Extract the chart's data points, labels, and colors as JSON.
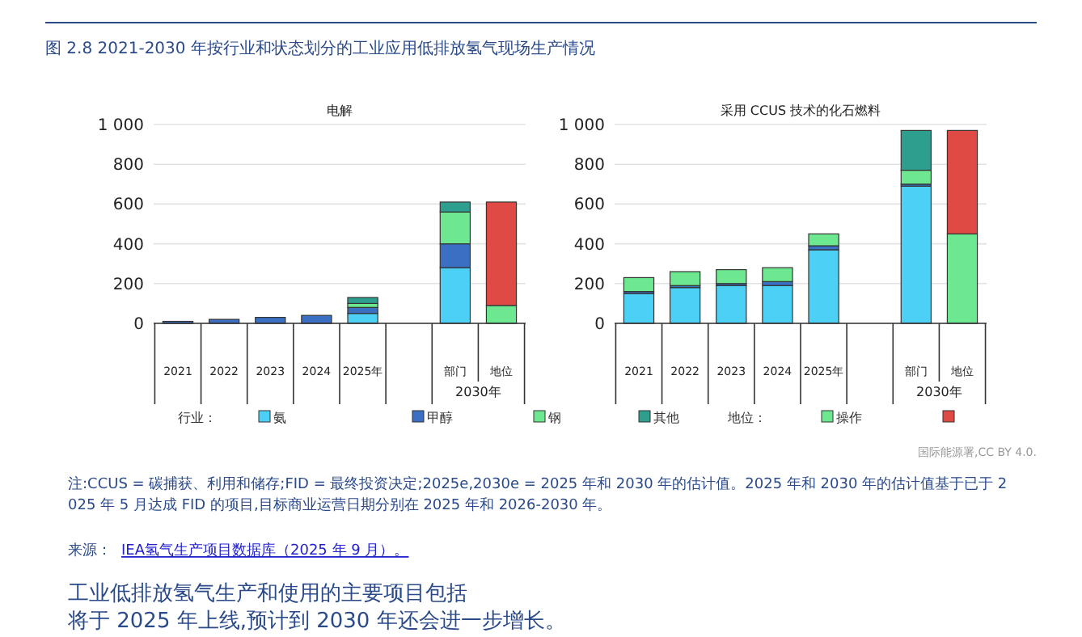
{
  "chart_data": [
    {
      "type": "bar",
      "stacked": true,
      "title": "图 2.8 2021-2030 年按行业和状态划分的工业应用低排放氢气现场生产情况",
      "subtitle": "电解",
      "categories": [
        "2021",
        "2022",
        "2023",
        "2024",
        "2025年",
        null,
        "部门",
        "地位"
      ],
      "ylim": [
        0,
        1000
      ],
      "yticks": [
        0,
        200,
        400,
        600,
        800,
        {
          "value": 1000,
          "label": "1 000"
        }
      ],
      "grid": "y",
      "legend": "bottom",
      "legend_title": "行业：",
      "series": [
        {
          "name": "氨",
          "color": "#4dd0f5",
          "values": [
            null,
            null,
            null,
            null,
            50,
            null,
            280,
            null
          ]
        },
        {
          "name": "甲醇",
          "color": "#3a6fc4",
          "values": [
            10,
            20,
            30,
            40,
            30,
            null,
            120,
            null
          ]
        },
        {
          "name": "钢",
          "color": "#6ee890",
          "values": [
            null,
            null,
            null,
            null,
            20,
            null,
            160,
            null
          ]
        },
        {
          "name": "其他",
          "color": "#2e9e8e",
          "values": [
            null,
            null,
            null,
            null,
            30,
            null,
            50,
            null
          ]
        },
        {
          "name": "操作",
          "color": "#6ee890",
          "values": [
            null,
            null,
            null,
            null,
            null,
            null,
            null,
            90
          ]
        },
        {
          "color": "#e04a44",
          "values": [
            null,
            null,
            null,
            null,
            null,
            null,
            null,
            520
          ]
        }
      ],
      "annotations": [
        "地位：",
        "2030年",
        "国际能源署,CC BY 4.0.",
        "注:CCUS = 碳捕获、利用和储存;FID = 最终投资决定;2025e,2030e = 2025 年和 2030 年的估计值。2025 年和 2030 年的估计值基于已于 2025 年 5 月达成 FID 的项目,目标商业运营日期分别在 2025 年和 2026-2030 年。",
        "来源：",
        "IEA氢气生产项目数据库（2025 年 9 月）。",
        "工业低排放氢气生产和使用的主要项目包括",
        "将于 2025 年上线,预计到 2030 年还会进一步增长。"
      ]
    },
    {
      "type": "bar",
      "stacked": true,
      "subtitle": "采用 CCUS 技术的化石燃料",
      "categories": [
        "2021",
        "2022",
        "2023",
        "2024",
        "2025年",
        null,
        "部门",
        "地位"
      ],
      "ylim": [
        0,
        1000
      ],
      "yticks": [
        0,
        200,
        400,
        600,
        800,
        {
          "value": 1000,
          "label": "1 000"
        }
      ],
      "grid": "y",
      "series": [
        {
          "color": "#4dd0f5",
          "values": [
            150,
            180,
            190,
            190,
            370,
            null,
            690,
            null
          ]
        },
        {
          "color": "#3a6fc4",
          "values": [
            10,
            10,
            10,
            20,
            20,
            null,
            10,
            null
          ]
        },
        {
          "color": "#6ee890",
          "values": [
            70,
            70,
            70,
            70,
            60,
            null,
            70,
            null
          ]
        },
        {
          "color": "#2e9e8e",
          "values": [
            null,
            null,
            null,
            null,
            null,
            null,
            200,
            null
          ]
        },
        {
          "color": "#6ee890",
          "values": [
            null,
            null,
            null,
            null,
            null,
            null,
            null,
            450
          ]
        },
        {
          "color": "#e04a44",
          "values": [
            null,
            null,
            null,
            null,
            null,
            null,
            null,
            520
          ]
        }
      ],
      "annotations": [
        "2030年"
      ]
    }
  ]
}
